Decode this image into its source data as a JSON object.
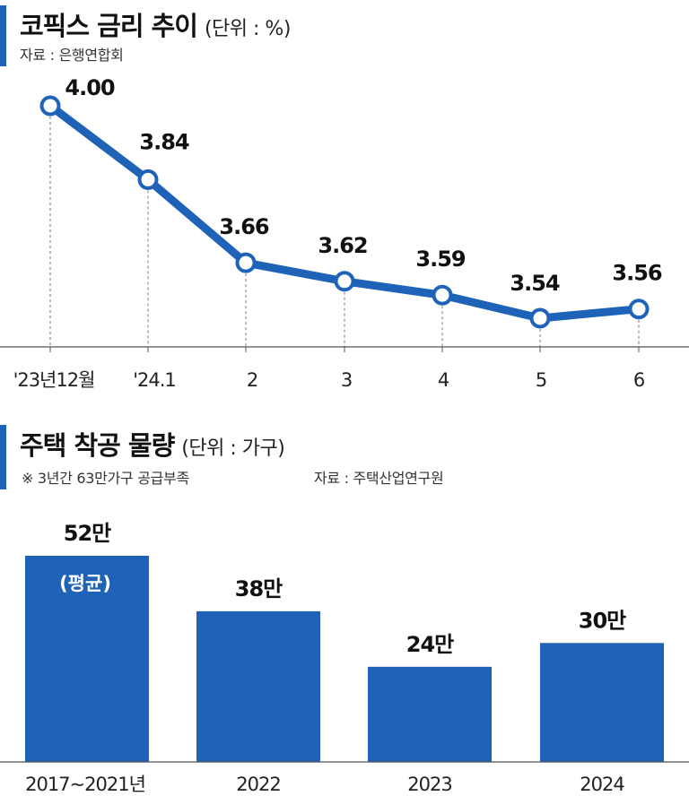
{
  "charts": {
    "rate": {
      "title": "코픽스 금리 추이",
      "unit": "(단위 : %)",
      "source": "자료 : 은행연합회"
    },
    "housing": {
      "title": "주택 착공 물량",
      "unit": "(단위 : 가구)",
      "note": "※ 3년간 63만가구 공급부족",
      "source": "자료 : 주택산업연구원",
      "bar_inner_label": "(평균)"
    }
  },
  "chart_data": [
    {
      "type": "line",
      "title": "코픽스 금리 추이",
      "unit": "%",
      "categories": [
        "'23년12월",
        "'24.1",
        "2",
        "3",
        "4",
        "5",
        "6"
      ],
      "values": [
        4.0,
        3.84,
        3.66,
        3.62,
        3.59,
        3.54,
        3.56
      ],
      "labels": [
        "4.00",
        "3.84",
        "3.66",
        "3.62",
        "3.59",
        "3.54",
        "3.56"
      ],
      "ylim": [
        3.4,
        4.05
      ],
      "grid": false,
      "color": "#1e63b8"
    },
    {
      "type": "bar",
      "title": "주택 착공 물량",
      "unit": "가구",
      "categories": [
        "2017~2021년",
        "2022",
        "2023",
        "2024"
      ],
      "values": [
        520000,
        380000,
        240000,
        300000
      ],
      "labels": [
        "52만",
        "38만",
        "24만",
        "30만"
      ],
      "ylim": [
        0,
        520000
      ],
      "grid": false,
      "color": "#1e63b8"
    }
  ]
}
